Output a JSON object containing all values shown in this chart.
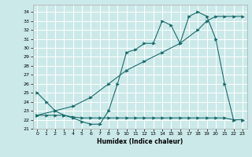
{
  "xlabel": "Humidex (Indice chaleur)",
  "ylabel": "",
  "bg_color": "#cce9e9",
  "grid_color": "#ffffff",
  "line_color": "#1a6b6b",
  "xlim": [
    -0.5,
    23.5
  ],
  "ylim": [
    21,
    34.8
  ],
  "yticks": [
    21,
    22,
    23,
    24,
    25,
    26,
    27,
    28,
    29,
    30,
    31,
    32,
    33,
    34
  ],
  "xticks": [
    0,
    1,
    2,
    3,
    4,
    5,
    6,
    7,
    8,
    9,
    10,
    11,
    12,
    13,
    14,
    15,
    16,
    17,
    18,
    19,
    20,
    21,
    22,
    23
  ],
  "series1_x": [
    0,
    1,
    2,
    3,
    4,
    5,
    6,
    7,
    8,
    9,
    10,
    11,
    12,
    13,
    14,
    15,
    16,
    17,
    18,
    19,
    20,
    21,
    22,
    23
  ],
  "series1_y": [
    25.0,
    24.0,
    23.0,
    22.5,
    22.2,
    21.8,
    21.5,
    21.5,
    23.0,
    26.0,
    29.5,
    29.8,
    30.5,
    30.5,
    33.0,
    32.5,
    30.5,
    33.5,
    34.0,
    33.5,
    31.0,
    26.0,
    22.0,
    22.0
  ],
  "series2_x": [
    0,
    1,
    2,
    3,
    4,
    5,
    6,
    7,
    8,
    9,
    10,
    11,
    12,
    13,
    14,
    15,
    16,
    17,
    18,
    19,
    20,
    21,
    22,
    23
  ],
  "series2_y": [
    22.5,
    22.5,
    22.5,
    22.5,
    22.3,
    22.2,
    22.2,
    22.2,
    22.2,
    22.2,
    22.2,
    22.2,
    22.2,
    22.2,
    22.2,
    22.2,
    22.2,
    22.2,
    22.2,
    22.2,
    22.2,
    22.2,
    22.0,
    22.0
  ],
  "series3_x": [
    0,
    2,
    4,
    6,
    8,
    10,
    12,
    14,
    16,
    18,
    19,
    20,
    21,
    22,
    23
  ],
  "series3_y": [
    22.5,
    23.0,
    23.5,
    24.5,
    26.0,
    27.5,
    28.5,
    29.5,
    30.5,
    32.0,
    33.0,
    33.5,
    33.5,
    33.5,
    33.5
  ]
}
